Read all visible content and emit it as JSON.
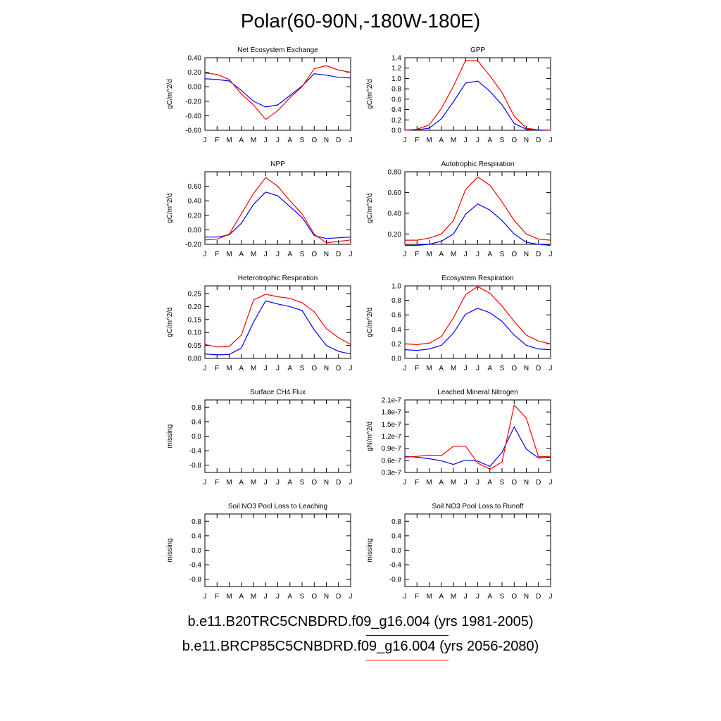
{
  "title": "Polar(60-90N,-180W-180E)",
  "months": [
    "J",
    "F",
    "M",
    "A",
    "M",
    "J",
    "J",
    "A",
    "S",
    "O",
    "N",
    "D",
    "J"
  ],
  "legend": {
    "entries": [
      {
        "label": "b.e11.B20TRC5CNBDRD.f09_g16.004 (yrs 1981-2005)",
        "color": "#0000ff"
      },
      {
        "label": "b.e11.BRCP85C5CNBDRD.f09_g16.004 (yrs 2056-2080)",
        "color": "#ff0000"
      }
    ]
  },
  "chart_data": [
    {
      "type": "line",
      "title": "Net Ecosystem Exchange",
      "ylabel": "gC/m^2/d",
      "ylim": [
        -0.6,
        0.4
      ],
      "yticks": [
        -0.6,
        -0.4,
        -0.2,
        0.0,
        0.2,
        0.4
      ],
      "ytick_labels": [
        "-0.60",
        "-0.40",
        "-0.20",
        "0.00",
        "0.20",
        "0.40"
      ],
      "series": [
        {
          "color": "#0000ff",
          "values": [
            0.11,
            0.1,
            0.08,
            -0.05,
            -0.2,
            -0.28,
            -0.25,
            -0.12,
            0.01,
            0.18,
            0.16,
            0.13,
            0.12
          ]
        },
        {
          "color": "#ff0000",
          "values": [
            0.19,
            0.17,
            0.1,
            -0.1,
            -0.25,
            -0.45,
            -0.33,
            -0.15,
            0.0,
            0.25,
            0.29,
            0.23,
            0.2
          ]
        }
      ]
    },
    {
      "type": "line",
      "title": "GPP",
      "ylabel": "gC/m^2/d",
      "ylim": [
        0,
        1.4
      ],
      "yticks": [
        0,
        0.2,
        0.4,
        0.6,
        0.8,
        1.0,
        1.2,
        1.4
      ],
      "ytick_labels": [
        "0.0",
        "0.2",
        "0.4",
        "0.6",
        "0.8",
        "1.0",
        "1.2",
        "1.4"
      ],
      "series": [
        {
          "color": "#0000ff",
          "values": [
            0.0,
            0.01,
            0.04,
            0.22,
            0.55,
            0.91,
            0.95,
            0.75,
            0.49,
            0.13,
            0.02,
            0.0,
            0.0
          ]
        },
        {
          "color": "#ff0000",
          "values": [
            0.0,
            0.02,
            0.1,
            0.42,
            0.85,
            1.35,
            1.34,
            1.05,
            0.73,
            0.27,
            0.04,
            0.01,
            0.0
          ]
        }
      ]
    },
    {
      "type": "line",
      "title": "NPP",
      "ylabel": "gC/m^2/d",
      "ylim": [
        -0.2,
        0.8
      ],
      "yticks": [
        -0.2,
        0.0,
        0.2,
        0.4,
        0.6
      ],
      "ytick_labels": [
        "-0.20",
        "0.00",
        "0.20",
        "0.40",
        "0.60"
      ],
      "series": [
        {
          "color": "#0000ff",
          "values": [
            -0.1,
            -0.1,
            -0.07,
            0.09,
            0.35,
            0.52,
            0.47,
            0.32,
            0.17,
            -0.08,
            -0.12,
            -0.11,
            -0.1
          ]
        },
        {
          "color": "#ff0000",
          "values": [
            -0.14,
            -0.13,
            -0.06,
            0.22,
            0.5,
            0.72,
            0.6,
            0.4,
            0.22,
            -0.06,
            -0.18,
            -0.16,
            -0.14
          ]
        }
      ]
    },
    {
      "type": "line",
      "title": "Autotrophic Respiration",
      "ylabel": "gC/m^2/d",
      "ylim": [
        0.1,
        0.8
      ],
      "yticks": [
        0.2,
        0.4,
        0.6,
        0.8
      ],
      "ytick_labels": [
        "0.20",
        "0.40",
        "0.60",
        "0.80"
      ],
      "series": [
        {
          "color": "#0000ff",
          "values": [
            0.09,
            0.09,
            0.1,
            0.13,
            0.2,
            0.39,
            0.49,
            0.43,
            0.33,
            0.2,
            0.12,
            0.1,
            0.09
          ]
        },
        {
          "color": "#ff0000",
          "values": [
            0.14,
            0.14,
            0.16,
            0.2,
            0.33,
            0.63,
            0.75,
            0.67,
            0.51,
            0.33,
            0.2,
            0.15,
            0.14
          ]
        }
      ]
    },
    {
      "type": "line",
      "title": "Heterotrophic Respiration",
      "ylabel": "gC/m^2/d",
      "ylim": [
        0,
        0.28
      ],
      "yticks": [
        0,
        0.05,
        0.1,
        0.15,
        0.2,
        0.25
      ],
      "ytick_labels": [
        "0.00",
        "0.05",
        "0.10",
        "0.15",
        "0.20",
        "0.25"
      ],
      "series": [
        {
          "color": "#0000ff",
          "values": [
            0.017,
            0.014,
            0.015,
            0.04,
            0.14,
            0.222,
            0.21,
            0.2,
            0.185,
            0.11,
            0.05,
            0.027,
            0.017
          ]
        },
        {
          "color": "#ff0000",
          "values": [
            0.054,
            0.044,
            0.046,
            0.09,
            0.225,
            0.248,
            0.238,
            0.232,
            0.215,
            0.18,
            0.115,
            0.08,
            0.054
          ]
        }
      ]
    },
    {
      "type": "line",
      "title": "Ecosystem Respiration",
      "ylabel": "gC/m^2/d",
      "ylim": [
        0,
        1.0
      ],
      "yticks": [
        0,
        0.2,
        0.4,
        0.6,
        0.8,
        1.0
      ],
      "ytick_labels": [
        "0.0",
        "0.2",
        "0.4",
        "0.6",
        "0.8",
        "1.0"
      ],
      "series": [
        {
          "color": "#0000ff",
          "values": [
            0.12,
            0.11,
            0.13,
            0.18,
            0.35,
            0.61,
            0.69,
            0.63,
            0.51,
            0.32,
            0.18,
            0.13,
            0.12
          ]
        },
        {
          "color": "#ff0000",
          "values": [
            0.2,
            0.19,
            0.21,
            0.3,
            0.56,
            0.88,
            0.99,
            0.9,
            0.72,
            0.51,
            0.32,
            0.24,
            0.2
          ]
        }
      ]
    },
    {
      "type": "line",
      "title": "Surface CH4 Flux",
      "ylabel": "missing",
      "ylim": [
        -1.0,
        1.0
      ],
      "yticks": [
        -0.8,
        -0.4,
        0.0,
        0.4,
        0.8
      ],
      "ytick_labels": [
        "-0.8",
        "-0.4",
        "0.0",
        "0.4",
        "0.8"
      ],
      "series": []
    },
    {
      "type": "line",
      "title": "Leached Mineral Nitrogen",
      "ylabel": "gN/m^2/d",
      "ylim": [
        3e-08,
        2.1e-07
      ],
      "yticks": [
        3e-08,
        6e-08,
        9e-08,
        1.2e-07,
        1.5e-07,
        1.8e-07,
        2.1e-07
      ],
      "ytick_labels": [
        "0.3e-7",
        "0.6e-7",
        "0.9e-7",
        "1.2e-7",
        "1.5e-7",
        "1.8e-7",
        "2.1e-7"
      ],
      "series": [
        {
          "color": "#0000ff",
          "values": [
            7e-08,
            6.8e-08,
            6.4e-08,
            5.9e-08,
            5e-08,
            6.1e-08,
            5.8e-08,
            4.5e-08,
            8e-08,
            1.43e-07,
            8.8e-08,
            6.6e-08,
            6.8e-08
          ]
        },
        {
          "color": "#ff0000",
          "values": [
            6.8e-08,
            7e-08,
            7.3e-08,
            7.2e-08,
            9.5e-08,
            9.5e-08,
            5.3e-08,
            3.8e-08,
            5.6e-08,
            1.97e-07,
            1.65e-07,
            6.9e-08,
            7e-08
          ]
        }
      ]
    },
    {
      "type": "line",
      "title": "Soil NO3 Pool Loss to Leaching",
      "ylabel": "missing",
      "ylim": [
        -1.0,
        1.0
      ],
      "yticks": [
        -0.8,
        -0.4,
        0.0,
        0.4,
        0.8
      ],
      "ytick_labels": [
        "-0.8",
        "-0.4",
        "0.0",
        "0.4",
        "0.8"
      ],
      "series": []
    },
    {
      "type": "line",
      "title": "Soil NO3 Pool Loss to Runoff",
      "ylabel": "missing",
      "ylim": [
        -1.0,
        1.0
      ],
      "yticks": [
        -0.8,
        -0.4,
        0.0,
        0.4,
        0.8
      ],
      "ytick_labels": [
        "-0.8",
        "-0.4",
        "0.0",
        "0.4",
        "0.8"
      ],
      "series": []
    }
  ]
}
